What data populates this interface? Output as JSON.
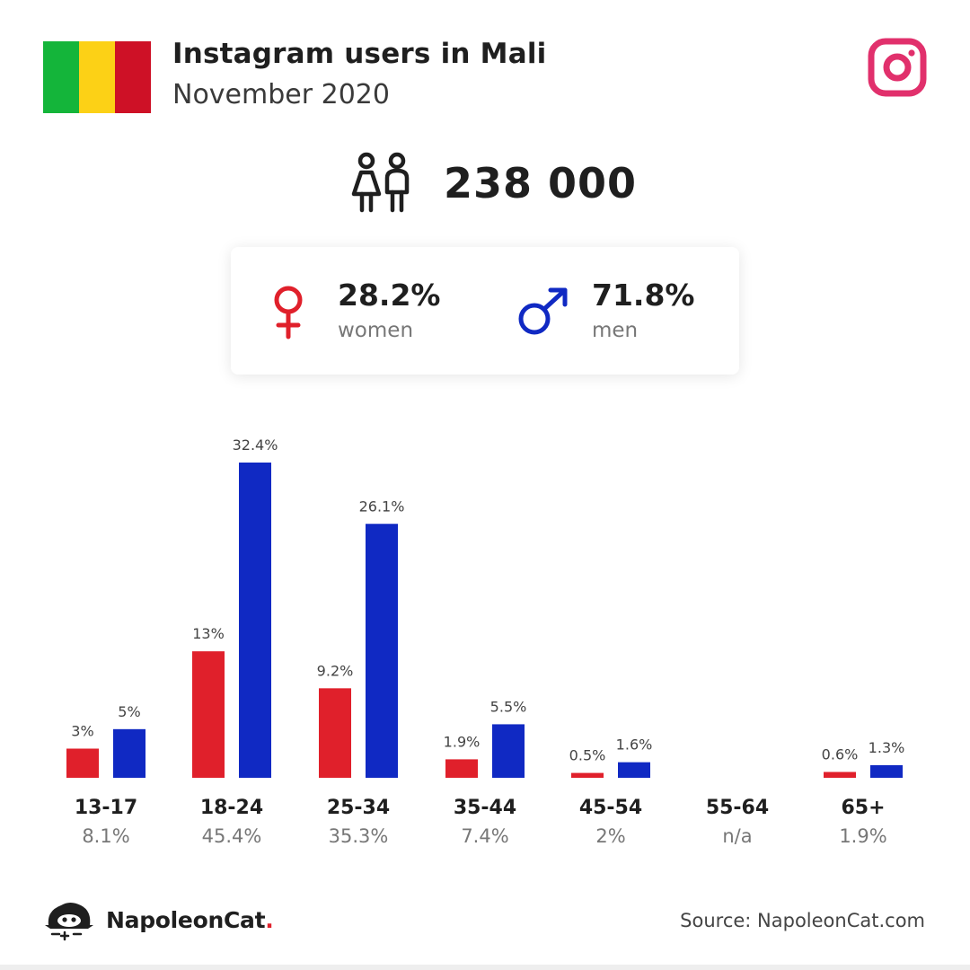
{
  "header": {
    "title": "Instagram users in Mali",
    "subtitle": "November 2020",
    "flag_colors": [
      "#14b53a",
      "#fcd116",
      "#ce1126"
    ],
    "brand_icon": "instagram-icon"
  },
  "summary": {
    "total_users": "238 000",
    "women_pct": "28.2%",
    "women_label": "women",
    "men_pct": "71.8%",
    "men_label": "men"
  },
  "colors": {
    "women": "#e0202b",
    "men": "#1029c3",
    "instagram": "#e1306c"
  },
  "chart_data": {
    "type": "bar",
    "categories": [
      "13-17",
      "18-24",
      "25-34",
      "35-44",
      "45-54",
      "55-64",
      "65+"
    ],
    "category_totals": [
      "8.1%",
      "45.4%",
      "35.3%",
      "7.4%",
      "2%",
      "n/a",
      "1.9%"
    ],
    "series": [
      {
        "key": "women",
        "values": [
          3,
          13,
          9.2,
          1.9,
          0.5,
          null,
          0.6
        ],
        "labels": [
          "3%",
          "13%",
          "9.2%",
          "1.9%",
          "0.5%",
          "",
          "0.6%"
        ]
      },
      {
        "key": "men",
        "values": [
          5,
          32.4,
          26.1,
          5.5,
          1.6,
          null,
          1.3
        ],
        "labels": [
          "5%",
          "32.4%",
          "26.1%",
          "5.5%",
          "1.6%",
          "",
          "1.3%"
        ]
      }
    ],
    "ylim": [
      0,
      32.4
    ],
    "grid": false
  },
  "footer": {
    "brand_name": "NapoleonCat",
    "brand_dot": ".",
    "source": "Source: NapoleonCat.com"
  }
}
